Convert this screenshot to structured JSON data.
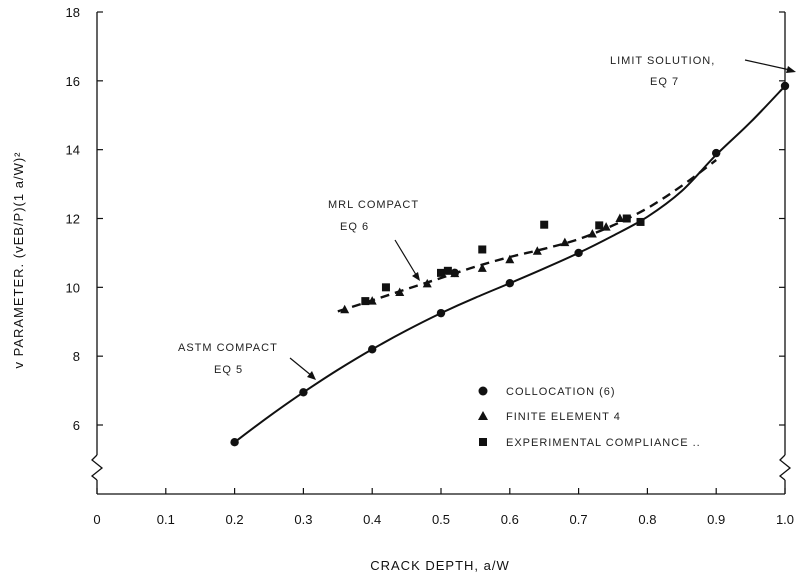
{
  "chart_data": {
    "type": "line",
    "xlabel": "CRACK DEPTH,  a/W",
    "ylabel": "v  PARAMETER.   (vEB/P)(1 a/W)²",
    "xlim": [
      0,
      1.0
    ],
    "ylim": [
      4.8,
      18
    ],
    "axis_break": true,
    "x_ticks": [
      0,
      0.1,
      0.2,
      0.3,
      0.4,
      0.5,
      0.6,
      0.7,
      0.8,
      0.9,
      1.0
    ],
    "x_tick_labels": [
      "0",
      "0.1",
      "0.2",
      "0.3",
      "0.4",
      "0.5",
      "0.6",
      "0.7",
      "0.8",
      "0.9",
      "1.0"
    ],
    "y_ticks": [
      6,
      8,
      10,
      12,
      14,
      16,
      18
    ],
    "y_tick_labels": [
      "6",
      "8",
      "10",
      "12",
      "14",
      "16",
      "18"
    ],
    "grid": false,
    "legend_position": "bottom-right",
    "curves": [
      {
        "style": "solid",
        "x": [
          0.2,
          0.25,
          0.3,
          0.35,
          0.4,
          0.45,
          0.5,
          0.55,
          0.6,
          0.65,
          0.7,
          0.75,
          0.8,
          0.85,
          0.9,
          0.95,
          1.0
        ],
        "y": [
          5.5,
          6.25,
          6.95,
          7.6,
          8.2,
          8.75,
          9.25,
          9.7,
          10.12,
          10.55,
          11.0,
          11.5,
          12.05,
          12.8,
          13.85,
          14.8,
          15.85
        ]
      },
      {
        "style": "dashed",
        "x": [
          0.35,
          0.4,
          0.45,
          0.5,
          0.55,
          0.6,
          0.65,
          0.7,
          0.75,
          0.8,
          0.85,
          0.9
        ],
        "y": [
          9.3,
          9.62,
          9.95,
          10.27,
          10.6,
          10.88,
          11.12,
          11.4,
          11.8,
          12.3,
          12.95,
          13.7
        ]
      }
    ],
    "series": [
      {
        "name": "COLLOCATION (6)",
        "marker": "circle",
        "x": [
          0.2,
          0.3,
          0.4,
          0.5,
          0.52,
          0.6,
          0.7,
          0.9,
          1.0
        ],
        "y": [
          5.5,
          6.95,
          8.2,
          9.25,
          10.42,
          10.12,
          11.0,
          13.9,
          15.85
        ]
      },
      {
        "name": "FINITE ELEMENT  4",
        "marker": "triangle",
        "x": [
          0.36,
          0.4,
          0.44,
          0.48,
          0.52,
          0.56,
          0.6,
          0.64,
          0.68,
          0.72,
          0.74,
          0.76
        ],
        "y": [
          9.35,
          9.6,
          9.85,
          10.1,
          10.4,
          10.55,
          10.8,
          11.05,
          11.3,
          11.55,
          11.75,
          12.0
        ]
      },
      {
        "name": "EXPERIMENTAL  COMPLIANCE  ..",
        "marker": "square",
        "x": [
          0.39,
          0.42,
          0.5,
          0.51,
          0.56,
          0.65,
          0.73,
          0.77,
          0.79
        ],
        "y": [
          9.6,
          10.0,
          10.42,
          10.48,
          11.1,
          11.82,
          11.8,
          12.0,
          11.9
        ]
      }
    ],
    "annotations": [
      {
        "line1": "MRL  COMPACT",
        "line2": "EQ  6"
      },
      {
        "line1": "ASTM  COMPACT",
        "line2": "EQ  5"
      },
      {
        "line1": "LIMIT  SOLUTION,",
        "line2": "EQ  7"
      }
    ]
  }
}
